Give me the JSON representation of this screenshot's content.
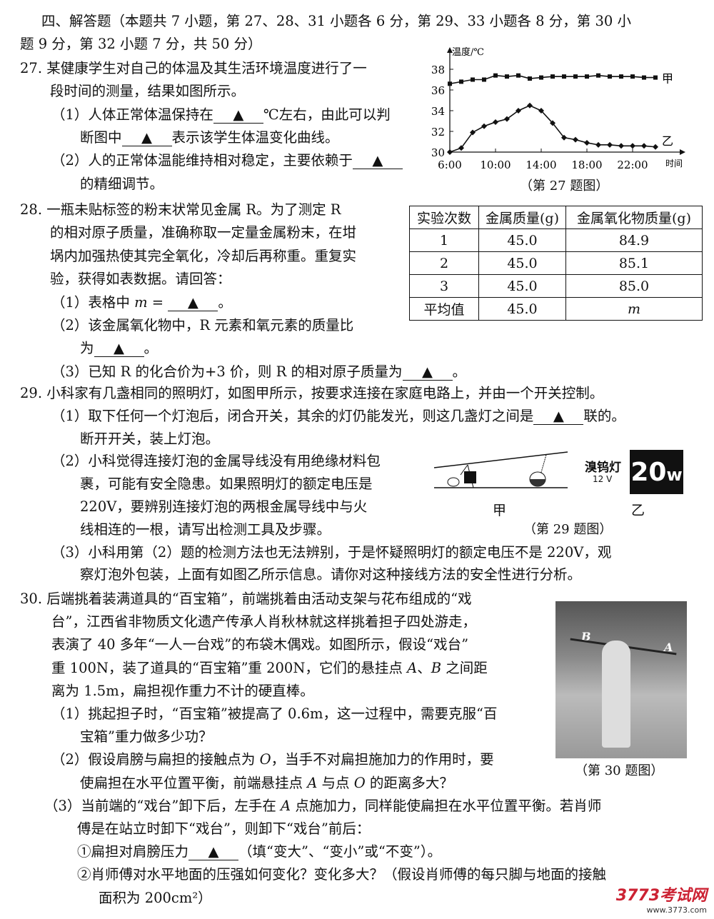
{
  "section_header": [
    [
      {
        "t": "四、解答题（本题共 7 小题，第 27、28、31 小题各 6 分，第 29、33 小题各 8 分，第 30 小"
      }
    ],
    [
      {
        "t": "题 9 分，第 32 小题 7 分，共 50 分）"
      }
    ]
  ],
  "q27": {
    "lines": [
      [
        {
          "t": "27. 某健康学生对自己的体温及其生活环境温度进行了一"
        }
      ],
      [
        {
          "t": "段时间的测量，结果如图所示。"
        }
      ],
      [
        {
          "t": "（1）人体正常体温保持在"
        },
        {
          "b": "▲"
        },
        {
          "t": "℃左右，由此可以判"
        }
      ],
      [
        {
          "t": "断图中"
        },
        {
          "b": "▲"
        },
        {
          "t": "表示该学生体温变化曲线。"
        }
      ],
      [
        {
          "t": "（2）人的正常体温能维持相对稳定，主要依赖于"
        },
        {
          "b": "▲"
        }
      ],
      [
        {
          "t": "的精细调节。"
        }
      ]
    ],
    "caption": "（第 27 题图）"
  },
  "chart_data": {
    "type": "line",
    "ylabel": "温度/℃",
    "xlabel": "时间",
    "x": [
      "6:00",
      "7:00",
      "8:00",
      "9:00",
      "10:00",
      "11:00",
      "12:00",
      "13:00",
      "14:00",
      "15:00",
      "16:00",
      "17:00",
      "18:00",
      "19:00",
      "20:00",
      "21:00",
      "22:00",
      "23:00",
      "24:00"
    ],
    "xticks": [
      "6:00",
      "10:00",
      "14:00",
      "18:00",
      "22:00"
    ],
    "yticks": [
      30,
      32,
      34,
      36,
      38
    ],
    "ylim": [
      30,
      39
    ],
    "series": [
      {
        "name": "甲",
        "marker": "square",
        "values": [
          36.6,
          36.8,
          37.0,
          37.0,
          37.4,
          37.3,
          37.4,
          37.1,
          37.2,
          37.3,
          37.3,
          37.3,
          37.3,
          37.4,
          37.3,
          37.3,
          37.3,
          37.2,
          37.2
        ]
      },
      {
        "name": "乙",
        "marker": "diamond",
        "values": [
          30.0,
          30.4,
          31.9,
          32.5,
          32.9,
          33.2,
          34.0,
          34.5,
          34.0,
          32.8,
          31.4,
          31.2,
          30.9,
          30.7,
          30.7,
          30.6,
          30.6,
          30.6,
          30.5
        ]
      }
    ]
  },
  "q28": {
    "lines": [
      [
        {
          "t": "28.  一瓶未贴标签的粉末状常见金属 R。为了测定 R"
        }
      ],
      [
        {
          "t": "的相对原子质量，准确称取一定量金属粉末，在坩"
        }
      ],
      [
        {
          "t": "埚内加强热使其完全氧化，冷却后再称重。重复实"
        }
      ],
      [
        {
          "t": "验，获得如表数据。请回答："
        }
      ],
      [
        {
          "t": "（1）表格中 "
        },
        {
          "i": "m"
        },
        {
          "t": " = "
        },
        {
          "b": "▲"
        },
        {
          "t": "。"
        }
      ],
      [
        {
          "t": "（2）该金属氧化物中，R 元素和氧元素的质量比"
        }
      ],
      [
        {
          "t": "为"
        },
        {
          "b": "▲"
        },
        {
          "t": "。"
        }
      ],
      [
        {
          "t": "（3）已知 R 的化合价为+3 价，则 R 的相对原子质量为"
        },
        {
          "b": "▲"
        },
        {
          "t": "。"
        }
      ]
    ],
    "table": {
      "headers": [
        "实验次数",
        "金属质量(g)",
        "金属氧化物质量(g)"
      ],
      "rows": [
        [
          "1",
          "45.0",
          "84.9"
        ],
        [
          "2",
          "45.0",
          "85.1"
        ],
        [
          "3",
          "45.0",
          "85.0"
        ],
        [
          "平均值",
          "45.0",
          "m"
        ]
      ]
    }
  },
  "q29": {
    "lines": [
      [
        {
          "t": "29.  小科家有几盏相同的照明灯，如图甲所示，按要求连接在家庭电路上，并由一个开关控制。"
        }
      ],
      [
        {
          "t": "（1）取下任何一个灯泡后，闭合开关，其余的灯仍能发光，则这几盏灯之间是"
        },
        {
          "b": "▲"
        },
        {
          "t": "联的。"
        }
      ],
      [
        {
          "t": "断开开关，装上灯泡。"
        }
      ],
      [
        {
          "t": "（2）小科觉得连接灯泡的金属导线没有用绝缘材料包"
        }
      ],
      [
        {
          "t": "裹，可能有安全隐患。如果照明灯的额定电压是"
        }
      ],
      [
        {
          "t": "220V，要辨别连接灯泡的两根金属导线中与火"
        }
      ],
      [
        {
          "t": "线相连的一根，请写出检测工具及步骤。"
        }
      ],
      [
        {
          "t": "（3）小科用第（2）题的检测方法也无法辨别，于是怀疑照明灯的额定电压不是 220V，观"
        }
      ],
      [
        {
          "t": "察灯泡外包装，上面有如图乙所示信息。请你对这种接线方法的安全性进行分析。"
        }
      ]
    ],
    "fig": {
      "label_a": "甲",
      "label_b": "乙",
      "lamp_name": "溴钨灯",
      "voltage": "12 V",
      "power_num": "20",
      "power_unit": "w"
    },
    "caption": "（第 29 题图）"
  },
  "q30": {
    "lines": [
      [
        {
          "t": "30. 后端挑着装满道具的“百宝箱”，前端挑着由活动支架与花布组成的“戏"
        }
      ],
      [
        {
          "t": "台”，江西省非物质文化遗产传承人肖秋林就这样挑着担子四处游走，"
        }
      ],
      [
        {
          "t": "表演了 40 多年“一人一台戏”的布袋木偶戏。如图所示，假设“戏台”"
        }
      ],
      [
        {
          "t": "重 100N，装了道具的“百宝箱”重 200N，它们的悬挂点 "
        },
        {
          "i": "A"
        },
        {
          "t": "、"
        },
        {
          "i": "B"
        },
        {
          "t": " 之间距"
        }
      ],
      [
        {
          "t": "离为 1.5m，扁担视作重力不计的硬直棒。"
        }
      ],
      [
        {
          "t": "（1）挑起担子时，“百宝箱”被提高了 0.6m，这一过程中，需要克服“百"
        }
      ],
      [
        {
          "t": "宝箱”重力做多少功？"
        }
      ],
      [
        {
          "t": "（2）假设肩膀与扁担的接触点为 "
        },
        {
          "i": "O"
        },
        {
          "t": "，当手不对扁担施加力的作用时，要"
        }
      ],
      [
        {
          "t": "使扁担在水平位置平衡，前端悬挂点 "
        },
        {
          "i": "A"
        },
        {
          "t": " 与点 "
        },
        {
          "i": "O"
        },
        {
          "t": " 的距离多大？"
        }
      ],
      [
        {
          "t": "（3）当前端的“戏台”卸下后，左手在 "
        },
        {
          "i": "A"
        },
        {
          "t": " 点施加力，同样能使扁担在水平位置平衡。若肖师"
        }
      ],
      [
        {
          "t": "傅是在站立时卸下“戏台”，则卸下“戏台”前后："
        }
      ],
      [
        {
          "t": "①扁担对肩膀压力"
        },
        {
          "b": "▲"
        },
        {
          "t": "（填“变大”、“变小”或“不变”）。"
        }
      ],
      [
        {
          "t": "②肖师傅对水平地面的压强如何变化？变化多大？（假设肖师傅的每只脚与地面的接触"
        }
      ],
      [
        {
          "t": "面积为 200cm²）"
        }
      ]
    ],
    "photo_labels": [
      "B",
      "A"
    ],
    "caption": "（第 30 题图）"
  },
  "logo": {
    "brand": "3773考试网",
    "url": "www.3773.com"
  }
}
